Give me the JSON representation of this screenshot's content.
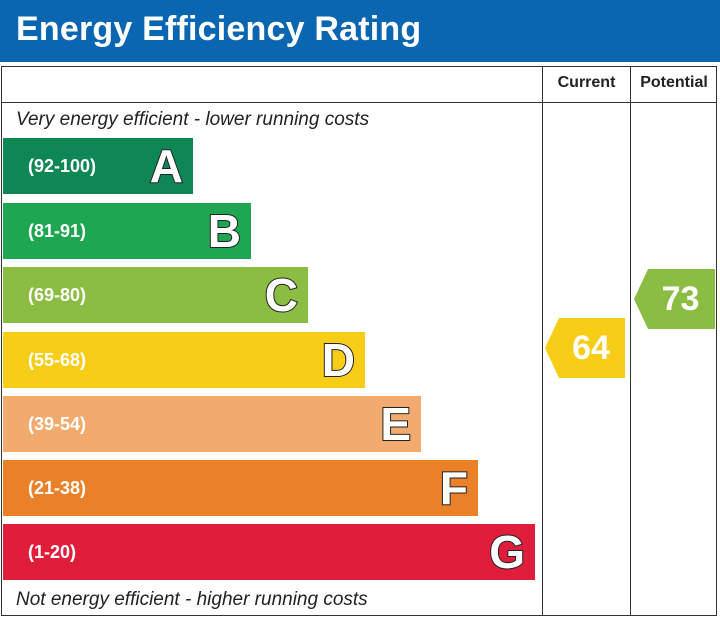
{
  "title": "Energy Efficiency Rating",
  "columns": {
    "current": "Current",
    "potential": "Potential"
  },
  "notes": {
    "top": "Very energy efficient - lower running costs",
    "bottom": "Not energy efficient - higher running costs"
  },
  "chart_data": {
    "type": "bar",
    "title": "Energy Efficiency Rating",
    "categories": [
      "A",
      "B",
      "C",
      "D",
      "E",
      "F",
      "G"
    ],
    "bands": [
      {
        "letter": "A",
        "range": "(92-100)",
        "color": "#0f8755"
      },
      {
        "letter": "B",
        "range": "(81-91)",
        "color": "#1ea650"
      },
      {
        "letter": "C",
        "range": "(69-80)",
        "color": "#8cbd43"
      },
      {
        "letter": "D",
        "range": "(55-68)",
        "color": "#f7cd18"
      },
      {
        "letter": "E",
        "range": "(39-54)",
        "color": "#f2aa6f"
      },
      {
        "letter": "F",
        "range": "(21-38)",
        "color": "#ea8129"
      },
      {
        "letter": "G",
        "range": "(1-20)",
        "color": "#e01e3c"
      }
    ],
    "current": {
      "value": 64,
      "band": "D",
      "color": "#f7cd18"
    },
    "potential": {
      "value": 73,
      "band": "C",
      "color": "#8cbd43"
    }
  }
}
